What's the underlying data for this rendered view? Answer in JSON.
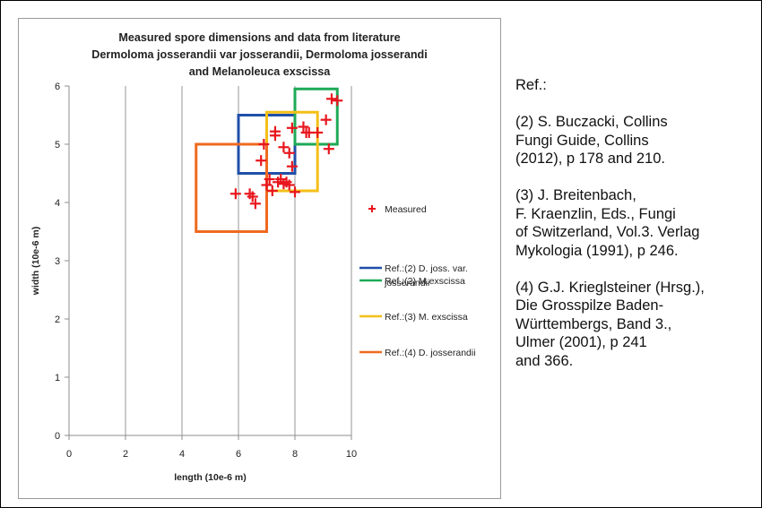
{
  "chart_data": {
    "type": "scatter",
    "title_lines": [
      "Measured spore dimensions and data from literature",
      "Dermoloma josserandii var josserandii, Dermoloma josserandi",
      "and Melanoleuca exscissa"
    ],
    "xlabel": "length (10e-6 m)",
    "ylabel": "width (10e-6 m)",
    "xlim": [
      0,
      10
    ],
    "ylim": [
      0,
      6
    ],
    "x_ticks": [
      "0",
      "2",
      "4",
      "6",
      "8",
      "10"
    ],
    "y_ticks": [
      "0",
      "1",
      "2",
      "3",
      "4",
      "5",
      "6"
    ],
    "grid": "vertical gridlines",
    "legend_position": "right",
    "measured": {
      "name": "Measured",
      "color": "#e8161e",
      "marker": "plus",
      "points": [
        [
          5.9,
          4.15
        ],
        [
          6.4,
          4.15
        ],
        [
          6.5,
          4.1
        ],
        [
          6.6,
          3.98
        ],
        [
          6.8,
          4.72
        ],
        [
          6.9,
          5.0
        ],
        [
          7.0,
          4.3
        ],
        [
          7.1,
          4.4
        ],
        [
          7.2,
          4.2
        ],
        [
          7.3,
          5.22
        ],
        [
          7.3,
          5.15
        ],
        [
          7.4,
          4.35
        ],
        [
          7.5,
          4.4
        ],
        [
          7.6,
          4.95
        ],
        [
          7.6,
          4.32
        ],
        [
          7.7,
          4.35
        ],
        [
          7.8,
          4.3
        ],
        [
          7.8,
          4.85
        ],
        [
          7.9,
          4.62
        ],
        [
          8.0,
          4.18
        ],
        [
          7.9,
          5.28
        ],
        [
          8.3,
          5.3
        ],
        [
          8.4,
          5.2
        ],
        [
          8.5,
          5.2
        ],
        [
          8.8,
          5.2
        ],
        [
          9.1,
          5.42
        ],
        [
          9.2,
          4.92
        ],
        [
          9.3,
          5.78
        ],
        [
          9.5,
          5.75
        ]
      ]
    },
    "rectangles": [
      {
        "name": "Ref.:(2) D. joss. var. josserandii",
        "legend_lines": [
          "Ref.:(2) D. joss. var.",
          "josserandii"
        ],
        "color": "#1f4fa8",
        "x": [
          6,
          8
        ],
        "y": [
          4.5,
          5.5
        ]
      },
      {
        "name": "Ref.:(2) M.exscissa",
        "legend_lines": [
          "Ref.:(2) M.exscissa"
        ],
        "color": "#1eaa56",
        "x": [
          8,
          9.5
        ],
        "y": [
          5,
          5.95
        ]
      },
      {
        "name": "Ref.:(3) M. exscissa",
        "legend_lines": [
          "Ref.:(3) M. exscissa"
        ],
        "color": "#f5bf18",
        "x": [
          7,
          8.8
        ],
        "y": [
          4.2,
          5.55
        ]
      },
      {
        "name": "Ref.:(4) D. josserandii",
        "legend_lines": [
          "Ref.:(4) D. josserandii"
        ],
        "color": "#ef6a1f",
        "x": [
          4.5,
          7
        ],
        "y": [
          3.5,
          5
        ]
      }
    ]
  },
  "references": {
    "heading": "Ref.:",
    "items": [
      [
        "(2) S. Buczacki, Collins",
        "Fungi Guide, Collins",
        "(2012), p 178 and 210."
      ],
      [
        "(3) J. Breitenbach,",
        "F. Kraenzlin, Eds., Fungi",
        "of Switzerland, Vol.3. Verlag",
        "Mykologia (1991), p 246."
      ],
      [
        "(4) G.J. Krieglsteiner (Hrsg.),",
        "Die Grosspilze Baden-",
        "Württembergs, Band 3.,",
        "Ulmer (2001), p 241",
        "and 366."
      ]
    ]
  }
}
